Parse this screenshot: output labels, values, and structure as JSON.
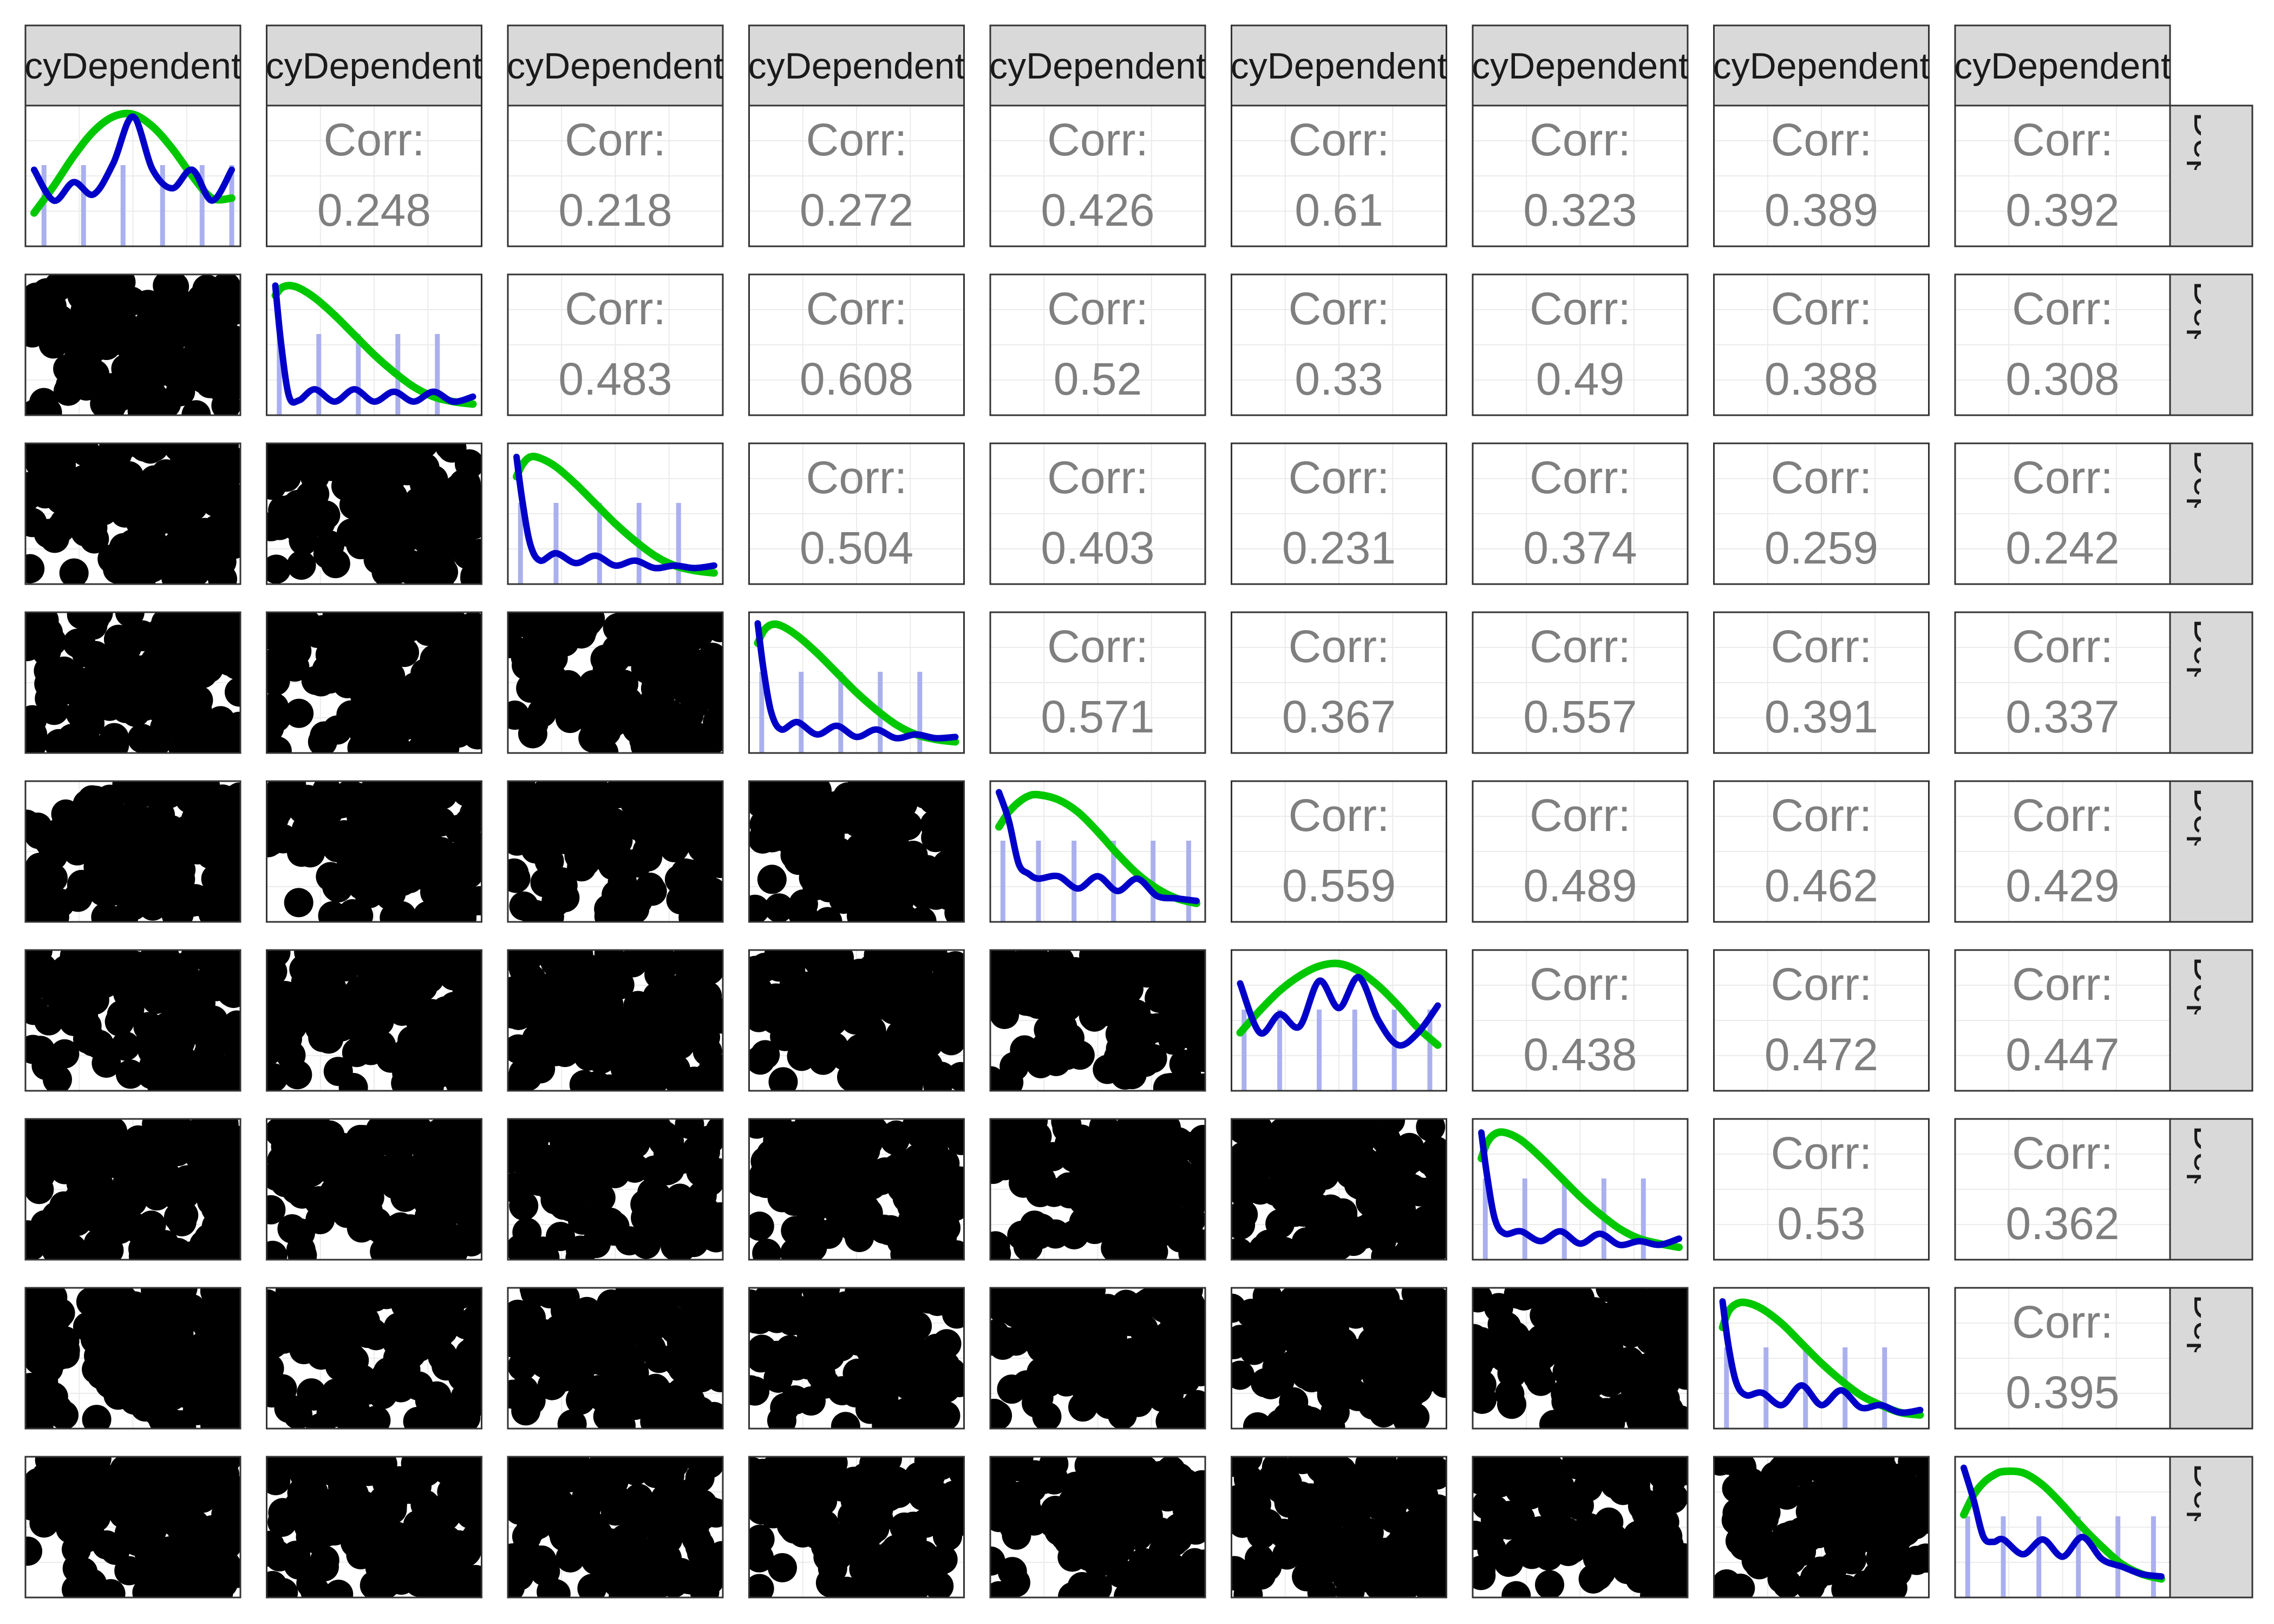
{
  "chart_data": {
    "type": "pairs_matrix",
    "n": 9,
    "column_strips": [
      "cyDependent",
      "cyDependent",
      "cyDependent",
      "cyDependent",
      "cyDependent",
      "cyDependent",
      "cyDependent",
      "cyDependent",
      "cyDependent"
    ],
    "row_strips": [
      "Depende",
      "Depende",
      "Depende",
      "Depende",
      "Depende",
      "Depende",
      "Depende",
      "Depende",
      "Depende"
    ],
    "corr_label": "Corr:",
    "correlations": [
      [
        null,
        "0.248",
        "0.218",
        "0.272",
        "0.426",
        "0.61",
        "0.323",
        "0.389",
        "0.392"
      ],
      [
        null,
        null,
        "0.483",
        "0.608",
        "0.52",
        "0.33",
        "0.49",
        "0.388",
        "0.308"
      ],
      [
        null,
        null,
        null,
        "0.504",
        "0.403",
        "0.231",
        "0.374",
        "0.259",
        "0.242"
      ],
      [
        null,
        null,
        null,
        null,
        "0.571",
        "0.367",
        "0.557",
        "0.391",
        "0.337"
      ],
      [
        null,
        null,
        null,
        null,
        null,
        "0.559",
        "0.489",
        "0.462",
        "0.429"
      ],
      [
        null,
        null,
        null,
        null,
        null,
        null,
        "0.438",
        "0.472",
        "0.447"
      ],
      [
        null,
        null,
        null,
        null,
        null,
        null,
        null,
        "0.53",
        "0.362"
      ],
      [
        null,
        null,
        null,
        null,
        null,
        null,
        null,
        null,
        "0.395"
      ],
      [
        null,
        null,
        null,
        null,
        null,
        null,
        null,
        null,
        null
      ]
    ],
    "diagonal": [
      {
        "x": [
          0,
          0.1,
          0.2,
          0.3,
          0.4,
          0.5,
          0.6,
          0.7,
          0.8,
          0.9,
          1
        ],
        "density": [
          0.55,
          0.3,
          0.45,
          0.35,
          0.6,
          0.98,
          0.55,
          0.4,
          0.55,
          0.3,
          0.55
        ],
        "normal": [
          0.2,
          0.42,
          0.66,
          0.86,
          0.98,
          1.0,
          0.9,
          0.72,
          0.5,
          0.32,
          0.32
        ],
        "ticks": [
          0.05,
          0.25,
          0.45,
          0.65,
          0.85,
          1.0
        ]
      },
      {
        "x": [
          0,
          0.03,
          0.07,
          0.12,
          0.2,
          0.3,
          0.4,
          0.5,
          0.6,
          0.7,
          0.8,
          0.9,
          1
        ],
        "density": [
          0.98,
          0.5,
          0.08,
          0.05,
          0.14,
          0.04,
          0.14,
          0.04,
          0.12,
          0.04,
          0.12,
          0.04,
          0.08
        ],
        "normal": [
          0.9,
          0.96,
          0.98,
          0.96,
          0.88,
          0.74,
          0.58,
          0.42,
          0.28,
          0.16,
          0.08,
          0.04,
          0.02
        ],
        "ticks": [
          0.02,
          0.22,
          0.42,
          0.62,
          0.82
        ]
      },
      {
        "x": [
          0,
          0.03,
          0.07,
          0.12,
          0.2,
          0.3,
          0.4,
          0.5,
          0.6,
          0.7,
          0.8,
          0.9,
          1
        ],
        "density": [
          0.96,
          0.6,
          0.25,
          0.12,
          0.18,
          0.1,
          0.16,
          0.08,
          0.12,
          0.06,
          0.08,
          0.06,
          0.08
        ],
        "normal": [
          0.8,
          0.9,
          0.96,
          0.95,
          0.88,
          0.74,
          0.58,
          0.42,
          0.28,
          0.16,
          0.08,
          0.04,
          0.02
        ],
        "ticks": [
          0.02,
          0.2,
          0.42,
          0.62,
          0.82
        ]
      },
      {
        "x": [
          0,
          0.03,
          0.07,
          0.12,
          0.2,
          0.3,
          0.4,
          0.5,
          0.6,
          0.7,
          0.8,
          0.9,
          1
        ],
        "density": [
          0.98,
          0.6,
          0.25,
          0.12,
          0.18,
          0.08,
          0.15,
          0.06,
          0.12,
          0.05,
          0.08,
          0.05,
          0.06
        ],
        "normal": [
          0.82,
          0.92,
          0.97,
          0.96,
          0.88,
          0.74,
          0.58,
          0.42,
          0.28,
          0.16,
          0.08,
          0.04,
          0.02
        ],
        "ticks": [
          0.02,
          0.22,
          0.42,
          0.62,
          0.82
        ]
      },
      {
        "x": [
          0,
          0.05,
          0.1,
          0.15,
          0.2,
          0.3,
          0.4,
          0.5,
          0.6,
          0.7,
          0.8,
          0.9,
          1
        ],
        "density": [
          0.98,
          0.75,
          0.4,
          0.32,
          0.28,
          0.3,
          0.2,
          0.3,
          0.18,
          0.28,
          0.14,
          0.12,
          0.1
        ],
        "normal": [
          0.7,
          0.82,
          0.9,
          0.95,
          0.96,
          0.92,
          0.82,
          0.66,
          0.48,
          0.32,
          0.2,
          0.12,
          0.08
        ],
        "ticks": [
          0.02,
          0.2,
          0.38,
          0.58,
          0.78,
          0.96
        ]
      },
      {
        "x": [
          0,
          0.1,
          0.2,
          0.3,
          0.4,
          0.5,
          0.6,
          0.7,
          0.8,
          0.9,
          1
        ],
        "density": [
          0.8,
          0.4,
          0.55,
          0.45,
          0.82,
          0.6,
          0.85,
          0.5,
          0.3,
          0.4,
          0.62
        ],
        "normal": [
          0.4,
          0.58,
          0.74,
          0.86,
          0.94,
          0.96,
          0.9,
          0.78,
          0.62,
          0.44,
          0.3
        ],
        "ticks": [
          0.02,
          0.2,
          0.4,
          0.58,
          0.78,
          0.96
        ]
      },
      {
        "x": [
          0,
          0.03,
          0.07,
          0.12,
          0.2,
          0.3,
          0.4,
          0.5,
          0.6,
          0.7,
          0.8,
          0.9,
          1
        ],
        "density": [
          0.96,
          0.6,
          0.25,
          0.14,
          0.16,
          0.08,
          0.16,
          0.06,
          0.14,
          0.05,
          0.08,
          0.05,
          0.1
        ],
        "normal": [
          0.75,
          0.88,
          0.95,
          0.96,
          0.9,
          0.76,
          0.6,
          0.44,
          0.3,
          0.18,
          0.1,
          0.06,
          0.03
        ],
        "ticks": [
          0.02,
          0.22,
          0.42,
          0.62,
          0.82
        ]
      },
      {
        "x": [
          0,
          0.03,
          0.07,
          0.12,
          0.2,
          0.3,
          0.4,
          0.5,
          0.6,
          0.7,
          0.8,
          0.9,
          1
        ],
        "density": [
          0.96,
          0.6,
          0.3,
          0.2,
          0.22,
          0.12,
          0.28,
          0.12,
          0.24,
          0.1,
          0.12,
          0.06,
          0.08
        ],
        "normal": [
          0.75,
          0.88,
          0.94,
          0.95,
          0.9,
          0.78,
          0.62,
          0.46,
          0.32,
          0.2,
          0.12,
          0.06,
          0.04
        ],
        "ticks": [
          0.02,
          0.22,
          0.42,
          0.62,
          0.82
        ]
      },
      {
        "x": [
          0,
          0.05,
          0.1,
          0.15,
          0.2,
          0.3,
          0.4,
          0.5,
          0.6,
          0.7,
          0.8,
          0.9,
          1
        ],
        "density": [
          0.98,
          0.72,
          0.42,
          0.38,
          0.4,
          0.28,
          0.4,
          0.26,
          0.42,
          0.24,
          0.18,
          0.12,
          0.1
        ],
        "normal": [
          0.6,
          0.76,
          0.86,
          0.92,
          0.95,
          0.94,
          0.84,
          0.68,
          0.5,
          0.34,
          0.2,
          0.12,
          0.08
        ],
        "ticks": [
          0.02,
          0.2,
          0.38,
          0.58,
          0.78,
          0.96
        ]
      }
    ],
    "colors": {
      "density": "#0000c8",
      "normal": "#00c800",
      "rug": "#aab0ee",
      "points": "#000000",
      "strip_fill": "#d9d9d9",
      "panel_border": "#333333",
      "corr_text": "#7f7f7f",
      "grid": "#ebebeb"
    }
  }
}
